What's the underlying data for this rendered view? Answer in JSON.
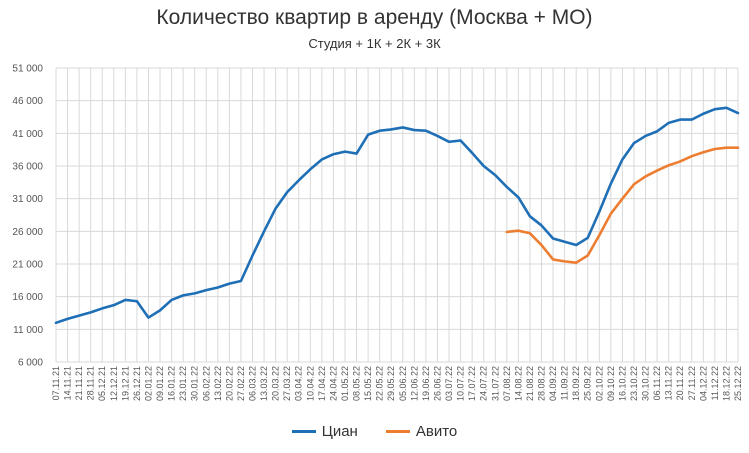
{
  "chart_data": {
    "type": "line",
    "title": "Количество квартир в аренду (Москва + МО)",
    "subtitle": "Студия + 1К + 2К + 3К",
    "ylim": [
      6000,
      51000
    ],
    "ytick_labels": [
      "6 000",
      "11 000",
      "16 000",
      "21 000",
      "26 000",
      "31 000",
      "36 000",
      "41 000",
      "46 000",
      "51 000"
    ],
    "ytick_values": [
      6000,
      11000,
      16000,
      21000,
      26000,
      31000,
      36000,
      41000,
      46000,
      51000
    ],
    "grid": true,
    "legend_position": "bottom",
    "categories": [
      "07.11.21",
      "14.11.21",
      "21.11.21",
      "28.11.21",
      "05.12.21",
      "12.12.21",
      "19.12.21",
      "26.12.21",
      "02.01.22",
      "09.01.22",
      "16.01.22",
      "23.01.22",
      "30.01.22",
      "06.02.22",
      "13.02.22",
      "20.02.22",
      "27.02.22",
      "06.03.22",
      "13.03.22",
      "20.03.22",
      "27.03.22",
      "03.04.22",
      "10.04.22",
      "17.04.22",
      "24.04.22",
      "01.05.22",
      "08.05.22",
      "15.05.22",
      "22.05.22",
      "29.05.22",
      "05.06.22",
      "12.06.22",
      "19.06.22",
      "26.06.22",
      "03.07.22",
      "10.07.22",
      "17.07.22",
      "24.07.22",
      "31.07.22",
      "07.08.22",
      "14.08.22",
      "21.08.22",
      "28.08.22",
      "04.09.22",
      "11.09.22",
      "18.09.22",
      "25.09.22",
      "02.10.22",
      "09.10.22",
      "16.10.22",
      "23.10.22",
      "30.10.22",
      "06.11.22",
      "13.11.22",
      "20.11.22",
      "27.11.22",
      "04.12.22",
      "11.12.22",
      "18.12.22",
      "25.12.22"
    ],
    "series": [
      {
        "name": "Циан",
        "color": "#1f6fb7",
        "values": [
          12000,
          12600,
          13100,
          13600,
          14200,
          14700,
          15500,
          15300,
          12800,
          13900,
          15500,
          16200,
          16500,
          17000,
          17400,
          18000,
          18400,
          22300,
          26000,
          29500,
          32000,
          33800,
          35500,
          37000,
          37800,
          38200,
          37900,
          40800,
          41400,
          41600,
          41900,
          41500,
          41400,
          40600,
          39700,
          39900,
          38000,
          36000,
          34600,
          32800,
          31200,
          28300,
          26900,
          24900,
          24400,
          23900,
          25000,
          29000,
          33300,
          37000,
          39500,
          40600,
          41300,
          42600,
          43100,
          43100,
          44000,
          44700,
          44900,
          44100
        ]
      },
      {
        "name": "Авито",
        "color": "#ed7d31",
        "values": [
          null,
          null,
          null,
          null,
          null,
          null,
          null,
          null,
          null,
          null,
          null,
          null,
          null,
          null,
          null,
          null,
          null,
          null,
          null,
          null,
          null,
          null,
          null,
          null,
          null,
          null,
          null,
          null,
          null,
          null,
          null,
          null,
          null,
          null,
          null,
          null,
          null,
          null,
          null,
          25900,
          26100,
          25700,
          23900,
          21700,
          21400,
          21200,
          22300,
          25400,
          28700,
          31000,
          33200,
          34400,
          35300,
          36100,
          36700,
          37500,
          38100,
          38600,
          38800,
          38800
        ]
      }
    ]
  }
}
